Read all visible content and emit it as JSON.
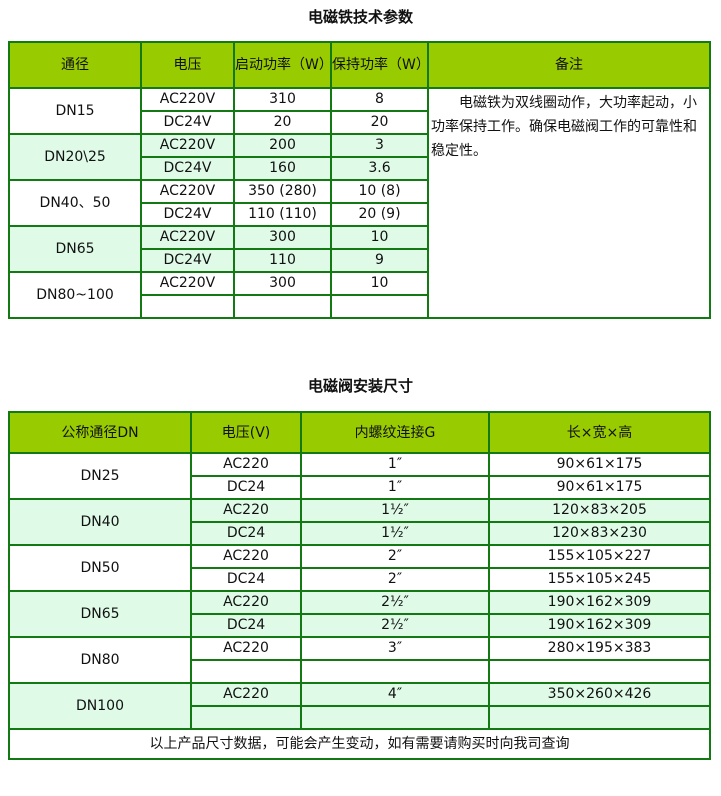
{
  "table1": {
    "title": "电磁铁技术参数",
    "headers": [
      "通径",
      "电压",
      "启动功率（W）",
      "保持功率（W）",
      "备注"
    ],
    "note": "电磁铁为双线圈动作，大功率起动，小功率保持工作。确保电磁阀工作的可靠性和稳定性。",
    "groups": [
      {
        "size": "DN15",
        "rows": [
          [
            "AC220V",
            "310",
            "8"
          ],
          [
            "DC24V",
            "20",
            "20"
          ]
        ]
      },
      {
        "size": "DN20\\25",
        "rows": [
          [
            "AC220V",
            "200",
            "3"
          ],
          [
            "DC24V",
            "160",
            "3.6"
          ]
        ]
      },
      {
        "size": "DN40、50",
        "rows": [
          [
            "AC220V",
            "350 (280)",
            "10 (8)"
          ],
          [
            "DC24V",
            "110 (110)",
            "20 (9)"
          ]
        ]
      },
      {
        "size": "DN65",
        "rows": [
          [
            "AC220V",
            "300",
            "10"
          ],
          [
            "DC24V",
            "110",
            "9"
          ]
        ]
      },
      {
        "size": "DN80~100",
        "rows": [
          [
            "AC220V",
            "300",
            "10"
          ],
          [
            "",
            "",
            ""
          ]
        ]
      }
    ]
  },
  "table2": {
    "title": "电磁阀安装尺寸",
    "headers": [
      "公称通径DN",
      "电压(V)",
      "内螺纹连接G",
      "长×宽×高"
    ],
    "groups": [
      {
        "size": "DN25",
        "rows": [
          [
            "AC220",
            "1″",
            "90×61×175"
          ],
          [
            "DC24",
            "1″",
            "90×61×175"
          ]
        ]
      },
      {
        "size": "DN40",
        "rows": [
          [
            "AC220",
            "1½″",
            "120×83×205"
          ],
          [
            "DC24",
            "1½″",
            "120×83×230"
          ]
        ]
      },
      {
        "size": "DN50",
        "rows": [
          [
            "AC220",
            "2″",
            "155×105×227"
          ],
          [
            "DC24",
            "2″",
            "155×105×245"
          ]
        ]
      },
      {
        "size": "DN65",
        "rows": [
          [
            "AC220",
            "2½″",
            "190×162×309"
          ],
          [
            "DC24",
            "2½″",
            "190×162×309"
          ]
        ]
      },
      {
        "size": "DN80",
        "rows": [
          [
            "AC220",
            "3″",
            "280×195×383"
          ],
          [
            "",
            "",
            ""
          ]
        ]
      },
      {
        "size": "DN100",
        "rows": [
          [
            "AC220",
            "4″",
            "350×260×426"
          ],
          [
            "",
            "",
            ""
          ]
        ]
      }
    ],
    "footer": "以上产品尺寸数据，可能会产生变动，如有需要请购买时向我司查询"
  }
}
